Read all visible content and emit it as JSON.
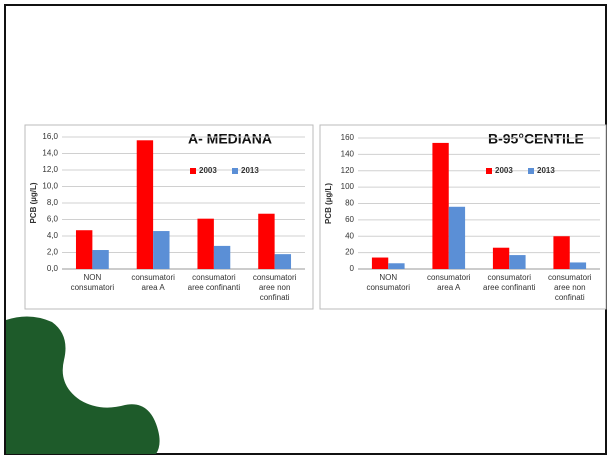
{
  "chart_data": [
    {
      "type": "bar",
      "title": "A- MEDIANA",
      "y_label": "PCB (µg/L)",
      "categories": [
        "NON consumatori",
        "consumatori area A",
        "consumatori aree confinanti",
        "consumatori aree non confinati"
      ],
      "series": [
        {
          "name": "2003",
          "color": "#ff0000",
          "values": [
            4.7,
            15.6,
            6.1,
            6.7
          ]
        },
        {
          "name": "2013",
          "color": "#5b8fd6",
          "values": [
            2.3,
            4.6,
            2.8,
            1.8
          ]
        }
      ],
      "ylim": [
        0,
        16
      ],
      "yticks": [
        {
          "value": 0,
          "label": "0,0"
        },
        {
          "value": 2,
          "label": "2,0"
        },
        {
          "value": 4,
          "label": "4,0"
        },
        {
          "value": 6,
          "label": "6,0"
        },
        {
          "value": 8,
          "label": "8,0"
        },
        {
          "value": 10,
          "label": "10,0"
        },
        {
          "value": 12,
          "label": "12,0"
        },
        {
          "value": 14,
          "label": "14,0"
        },
        {
          "value": 16,
          "label": "16,0"
        }
      ],
      "grid": true
    },
    {
      "type": "bar",
      "title": "B-95°CENTILE",
      "y_label": "PCB (µg/L)",
      "categories": [
        "NON consumatori",
        "consumatori area A",
        "consumatori aree confinanti",
        "consumatori aree non confinati"
      ],
      "series": [
        {
          "name": "2003",
          "color": "#ff0000",
          "values": [
            14,
            154,
            26,
            40
          ]
        },
        {
          "name": "2013",
          "color": "#5b8fd6",
          "values": [
            7,
            76,
            17,
            8
          ]
        }
      ],
      "ylim": [
        0,
        160
      ],
      "yticks": [
        0,
        20,
        40,
        60,
        80,
        100,
        120,
        140,
        160
      ],
      "grid": true
    }
  ]
}
